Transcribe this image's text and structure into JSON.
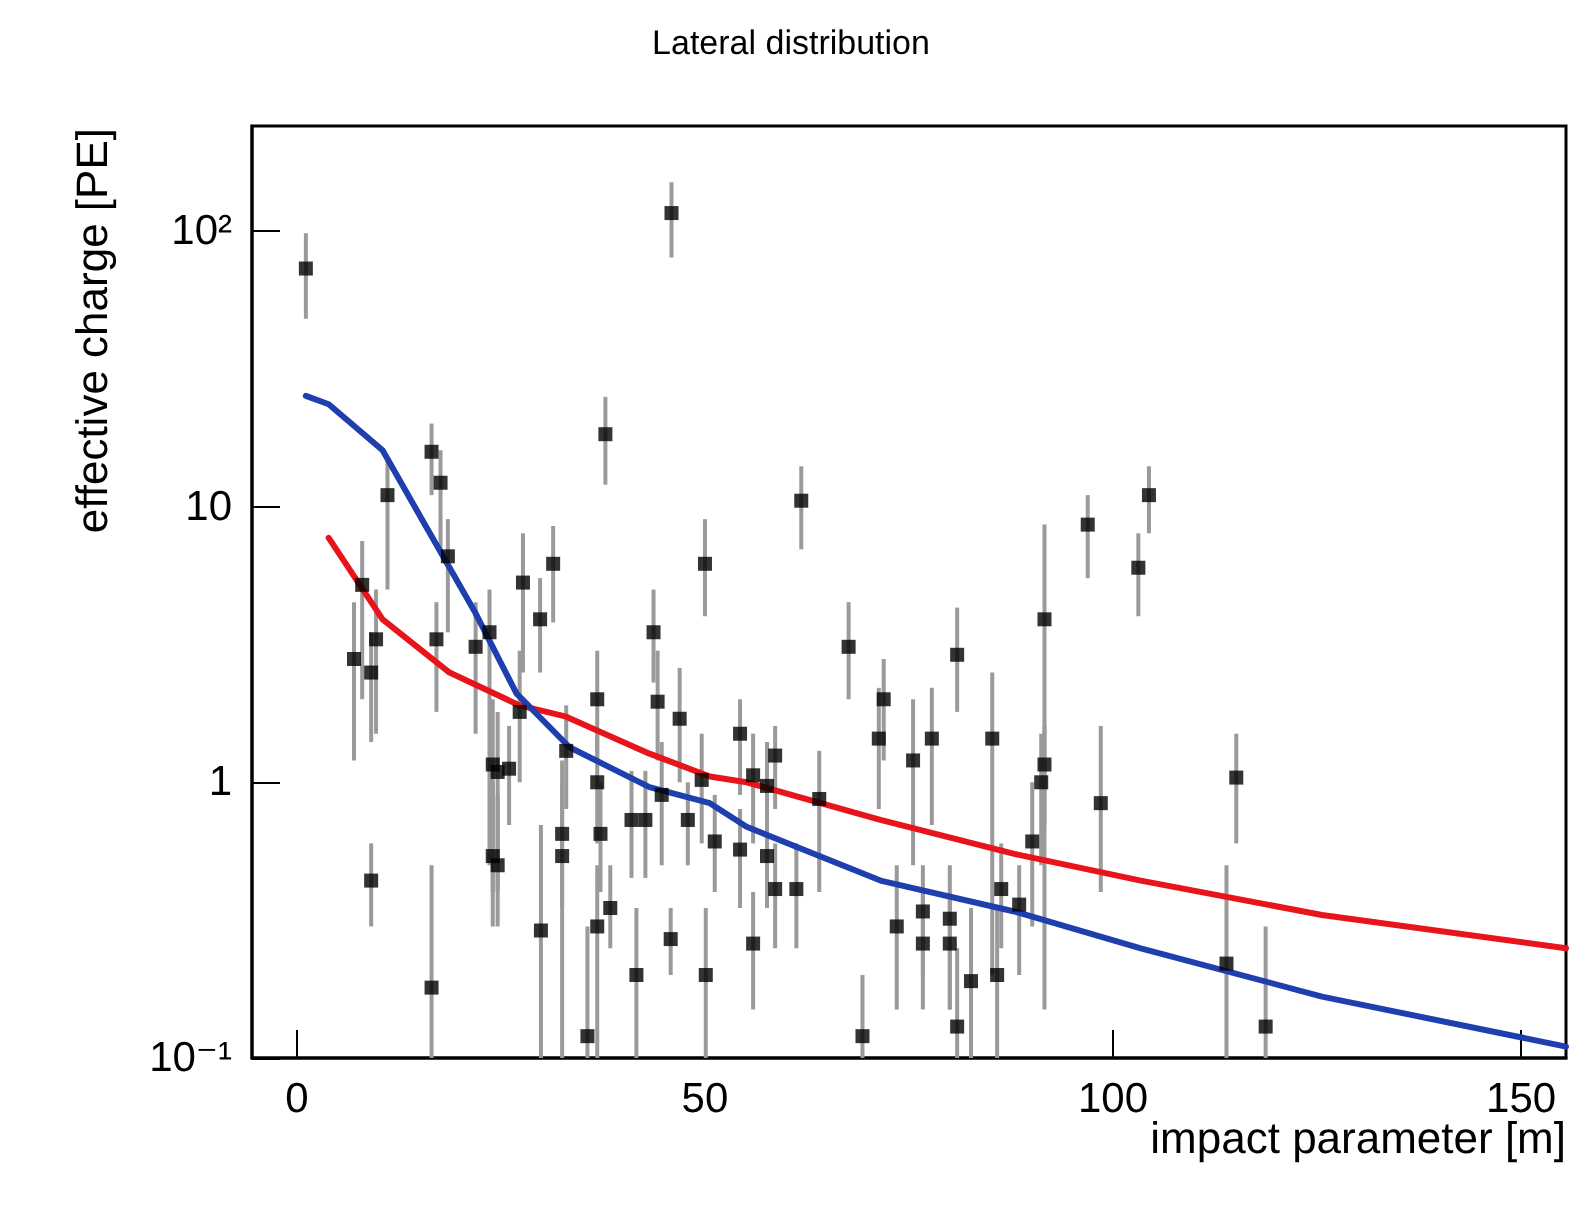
{
  "chart_data": {
    "type": "scatter",
    "title": "Lateral distribution",
    "xlabel": "impact parameter [m]",
    "ylabel": "effective charge [PE]",
    "xlim": [
      -5.5,
      155.5
    ],
    "ylim": [
      0.1,
      240
    ],
    "xticks": [
      0,
      50,
      100,
      150
    ],
    "yticks": [
      {
        "value": 0.1,
        "label": "10⁻¹"
      },
      1,
      10,
      {
        "value": 100,
        "label": "10²"
      }
    ],
    "log": "y",
    "grid": false,
    "series": [
      {
        "color": "#000000",
        "marker": "square",
        "x": [
          1.1,
          45.9,
          37.8,
          16.5,
          17.6,
          11.1,
          18.5,
          31.4,
          27.7,
          50.0,
          8.0,
          29.8,
          9.7,
          7.0,
          9.1,
          17.1,
          21.9,
          23.6,
          27.3,
          33.0,
          36.8,
          44.2,
          43.7,
          46.9,
          24.0,
          24.6,
          26.0,
          36.8,
          44.7,
          49.6,
          41.0,
          42.7,
          47.9,
          32.5,
          37.2,
          32.5,
          24.0,
          24.6,
          38.4,
          36.8,
          29.9,
          9.1,
          45.8,
          16.5,
          41.6,
          50.1,
          35.6,
          61.8,
          96.9,
          103.1,
          91.6,
          67.6,
          80.9,
          71.9,
          71.3,
          77.8,
          85.2,
          75.5,
          91.6,
          91.2,
          58.6,
          54.3,
          55.9,
          57.6,
          64.0,
          51.2,
          54.3,
          57.6,
          58.6,
          61.2,
          55.9,
          73.5,
          76.7,
          76.7,
          80.0,
          80.0,
          86.3,
          88.5,
          82.6,
          85.8,
          69.3,
          80.9,
          90.1,
          98.5,
          104.4,
          115.1,
          113.9,
          118.7
        ],
        "values": [
          73,
          116,
          18.3,
          15.8,
          12.2,
          11.0,
          6.6,
          6.2,
          5.3,
          6.2,
          5.2,
          3.9,
          3.3,
          2.8,
          2.5,
          3.3,
          3.1,
          3.5,
          1.8,
          1.3,
          2.0,
          1.96,
          3.5,
          1.7,
          1.16,
          1.09,
          1.12,
          1.0,
          0.9,
          1.02,
          0.73,
          0.73,
          0.73,
          0.65,
          0.65,
          0.54,
          0.54,
          0.5,
          0.35,
          0.3,
          0.29,
          0.44,
          0.27,
          0.18,
          0.2,
          0.2,
          0.12,
          10.5,
          8.6,
          6.0,
          3.9,
          3.1,
          2.9,
          2.0,
          1.44,
          1.44,
          1.44,
          1.2,
          1.16,
          1.0,
          1.25,
          1.5,
          1.06,
          0.97,
          0.87,
          0.61,
          0.57,
          0.54,
          0.41,
          0.41,
          0.26,
          0.3,
          0.34,
          0.26,
          0.32,
          0.26,
          0.41,
          0.36,
          0.19,
          0.2,
          0.12,
          0.13,
          0.61,
          0.84,
          11.0,
          1.04,
          0.22,
          0.13
        ],
        "errors": [
          [
            48,
            98
          ],
          [
            80,
            150
          ],
          [
            12,
            25
          ],
          [
            11,
            20
          ],
          [
            7,
            16
          ],
          [
            5,
            15
          ],
          [
            3.5,
            9
          ],
          [
            3.8,
            8.5
          ],
          [
            2.5,
            8
          ],
          [
            4,
            9
          ],
          [
            2,
            7.5
          ],
          [
            2.5,
            5.5
          ],
          [
            1.5,
            5
          ],
          [
            1.2,
            4.5
          ],
          [
            1.4,
            3.5
          ],
          [
            1.8,
            4.5
          ],
          [
            1.5,
            4.5
          ],
          [
            0.5,
            5
          ],
          [
            1,
            3
          ],
          [
            0.8,
            1.9
          ],
          [
            1.2,
            3
          ],
          [
            1.2,
            3
          ],
          [
            2.3,
            5
          ],
          [
            1,
            2.6
          ],
          [
            0.4,
            2
          ],
          [
            0.4,
            1.8
          ],
          [
            0.7,
            1.6
          ],
          [
            0.6,
            1.5
          ],
          [
            0.5,
            1.4
          ],
          [
            0.6,
            1.5
          ],
          [
            0.45,
            1.1
          ],
          [
            0.45,
            1.1
          ],
          [
            0.5,
            1
          ],
          [
            0.35,
            1
          ],
          [
            0.4,
            1
          ],
          [
            0.1,
            1.2
          ],
          [
            0.3,
            1
          ],
          [
            0.3,
            0.9
          ],
          [
            0.25,
            0.5
          ],
          [
            0.1,
            0.5
          ],
          [
            0.1,
            0.7
          ],
          [
            0.3,
            0.6
          ],
          [
            0.2,
            0.35
          ],
          [
            0.1,
            0.5
          ],
          [
            0.1,
            0.35
          ],
          [
            0.1,
            0.35
          ],
          [
            0.1,
            0.3
          ],
          [
            7,
            14
          ],
          [
            5.5,
            11
          ],
          [
            4,
            8
          ],
          [
            0.15,
            8.6
          ],
          [
            2,
            4.5
          ],
          [
            1.8,
            4.3
          ],
          [
            1.2,
            2.8
          ],
          [
            0.8,
            2.2
          ],
          [
            0.7,
            2.2
          ],
          [
            0.2,
            2.5
          ],
          [
            0.5,
            2
          ],
          [
            0.7,
            1.6
          ],
          [
            0.5,
            1.5
          ],
          [
            0.8,
            1.6
          ],
          [
            0.9,
            2
          ],
          [
            0.6,
            1.5
          ],
          [
            0.6,
            1.4
          ],
          [
            0.4,
            1.3
          ],
          [
            0.4,
            0.9
          ],
          [
            0.35,
            0.8
          ],
          [
            0.35,
            0.75
          ],
          [
            0.25,
            0.6
          ],
          [
            0.25,
            0.6
          ],
          [
            0.15,
            0.4
          ],
          [
            0.15,
            0.5
          ],
          [
            0.2,
            0.5
          ],
          [
            0.15,
            0.4
          ],
          [
            0.15,
            0.5
          ],
          [
            0.15,
            0.4
          ],
          [
            0.25,
            0.6
          ],
          [
            0.2,
            0.5
          ],
          [
            0.1,
            0.35
          ],
          [
            0.1,
            0.35
          ],
          [
            0.1,
            0.2
          ],
          [
            0.1,
            0.25
          ],
          [
            0.3,
            1
          ],
          [
            0.4,
            1.6
          ],
          [
            8,
            14
          ],
          [
            0.6,
            1.5
          ],
          [
            0.1,
            0.5
          ],
          [
            0.1,
            0.3
          ]
        ]
      },
      {
        "type": "line",
        "color": "#e8141b",
        "marker": "none",
        "x": [
          3.9,
          10.5,
          18.7,
          27.3,
          33.0,
          43.2,
          50.6,
          55.1,
          71.5,
          87.9,
          103.4,
          125.6,
          155.5
        ],
        "values": [
          7.7,
          3.9,
          2.5,
          1.9,
          1.73,
          1.27,
          1.05,
          1.0,
          0.73,
          0.55,
          0.44,
          0.33,
          0.25
        ]
      },
      {
        "type": "line",
        "color": "#1f3fae",
        "marker": "none",
        "x": [
          1.1,
          3.9,
          10.5,
          15.4,
          21.9,
          26.9,
          33.4,
          43.2,
          50.6,
          55.1,
          71.5,
          87.9,
          103.4,
          125.6,
          155.5
        ],
        "values": [
          25.2,
          23.5,
          16,
          8.9,
          4.1,
          2.1,
          1.34,
          0.96,
          0.84,
          0.69,
          0.44,
          0.34,
          0.25,
          0.167,
          0.11
        ]
      }
    ]
  }
}
